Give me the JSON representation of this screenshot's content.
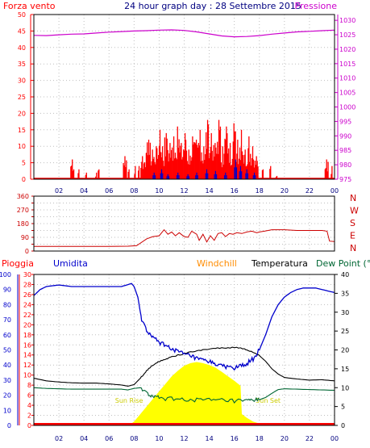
{
  "colors": {
    "wind": "#ff0000",
    "wind_secondary": "#0000cc",
    "pressure": "#cc00cc",
    "direction": "#cc0000",
    "rain": "#ff0000",
    "humidity": "#0000cc",
    "windchill": "#ff8c00",
    "temperature": "#000000",
    "dewpoint": "#006633",
    "sun": "#ffff00",
    "sun_label": "#cccc00",
    "grid": "#bfbfbf",
    "frame": "#000000"
  },
  "chart_data": [
    {
      "panel": "wind-pressure",
      "type": "bar",
      "title": "24 hour graph day : 28 Settembre 2015",
      "left_label": "Forza vento",
      "right_label": "Pressione",
      "x_ticks": [
        "02",
        "04",
        "06",
        "08",
        "10",
        "12",
        "14",
        "16",
        "18",
        "20",
        "22",
        "00"
      ],
      "y_left_ticks": [
        0,
        5,
        10,
        15,
        20,
        25,
        30,
        35,
        40,
        45,
        50
      ],
      "y_left_range": [
        0,
        50
      ],
      "y_right_ticks": [
        975,
        980,
        985,
        990,
        995,
        1000,
        1005,
        1010,
        1015,
        1020,
        1025,
        1030
      ],
      "y_right_range": [
        975,
        1032
      ],
      "x_range": [
        0,
        24
      ],
      "gust_peaks": [
        [
          3.1,
          6
        ],
        [
          3.6,
          3
        ],
        [
          4.2,
          2
        ],
        [
          5.0,
          2
        ],
        [
          5.2,
          3
        ],
        [
          7.3,
          7
        ],
        [
          7.6,
          3
        ],
        [
          8.1,
          4
        ],
        [
          8.4,
          4
        ],
        [
          8.7,
          7
        ],
        [
          9.0,
          8
        ],
        [
          9.2,
          12
        ],
        [
          9.5,
          9
        ],
        [
          9.8,
          10
        ],
        [
          10.1,
          15
        ],
        [
          10.3,
          10
        ],
        [
          10.6,
          14
        ],
        [
          10.9,
          11
        ],
        [
          11.2,
          13
        ],
        [
          11.5,
          16
        ],
        [
          11.8,
          11
        ],
        [
          12.1,
          14
        ],
        [
          12.4,
          9
        ],
        [
          12.7,
          13
        ],
        [
          13.0,
          12
        ],
        [
          13.3,
          15
        ],
        [
          13.6,
          10
        ],
        [
          13.9,
          18
        ],
        [
          14.2,
          14
        ],
        [
          14.5,
          11
        ],
        [
          14.8,
          18
        ],
        [
          15.1,
          10
        ],
        [
          15.4,
          16
        ],
        [
          15.7,
          11
        ],
        [
          16.0,
          17
        ],
        [
          16.3,
          12
        ],
        [
          16.6,
          15
        ],
        [
          16.9,
          9
        ],
        [
          17.2,
          13
        ],
        [
          17.5,
          10
        ],
        [
          17.8,
          7
        ],
        [
          18.3,
          3
        ],
        [
          18.9,
          4
        ],
        [
          19.4,
          1
        ],
        [
          23.4,
          6
        ],
        [
          23.8,
          4
        ]
      ],
      "mean_wind_peaks": [
        [
          9.6,
          2
        ],
        [
          10.2,
          3
        ],
        [
          10.7,
          1.5
        ],
        [
          11.5,
          2
        ],
        [
          12.3,
          1.5
        ],
        [
          13.0,
          2
        ],
        [
          13.8,
          3
        ],
        [
          14.5,
          2.5
        ],
        [
          15.3,
          2
        ],
        [
          16.1,
          6
        ],
        [
          16.5,
          4
        ],
        [
          17.0,
          3
        ],
        [
          17.6,
          2
        ]
      ],
      "pressure": [
        [
          0,
          1024.8
        ],
        [
          1,
          1024.7
        ],
        [
          2,
          1025.0
        ],
        [
          3,
          1025.2
        ],
        [
          4,
          1025.3
        ],
        [
          5,
          1025.6
        ],
        [
          6,
          1025.9
        ],
        [
          7,
          1026.1
        ],
        [
          8,
          1026.3
        ],
        [
          9,
          1026.4
        ],
        [
          10,
          1026.6
        ],
        [
          11,
          1026.7
        ],
        [
          12,
          1026.5
        ],
        [
          13,
          1026.0
        ],
        [
          14,
          1025.3
        ],
        [
          15,
          1024.6
        ],
        [
          16,
          1024.3
        ],
        [
          17,
          1024.4
        ],
        [
          18,
          1024.7
        ],
        [
          19,
          1025.2
        ],
        [
          20,
          1025.6
        ],
        [
          21,
          1026.0
        ],
        [
          22,
          1026.2
        ],
        [
          23,
          1026.4
        ],
        [
          24,
          1026.6
        ]
      ]
    },
    {
      "panel": "wind-direction",
      "type": "line",
      "y_ticks": [
        0,
        45,
        90,
        135,
        180,
        225,
        270,
        315,
        360
      ],
      "y_tick_labels": [
        "0",
        "",
        "90",
        "",
        "180",
        "",
        "270",
        "",
        "360"
      ],
      "compass_labels": [
        "N",
        "W",
        "S",
        "E",
        "N"
      ],
      "y_range": [
        0,
        360
      ],
      "x_range": [
        0,
        24
      ],
      "direction": [
        [
          0,
          30
        ],
        [
          6,
          30
        ],
        [
          7.5,
          32
        ],
        [
          8.2,
          35
        ],
        [
          9.0,
          80
        ],
        [
          9.5,
          95
        ],
        [
          10,
          100
        ],
        [
          10.4,
          140
        ],
        [
          10.7,
          110
        ],
        [
          11,
          125
        ],
        [
          11.3,
          100
        ],
        [
          11.6,
          120
        ],
        [
          12,
          95
        ],
        [
          12.3,
          90
        ],
        [
          12.6,
          130
        ],
        [
          13,
          110
        ],
        [
          13.2,
          70
        ],
        [
          13.5,
          110
        ],
        [
          13.8,
          60
        ],
        [
          14.1,
          100
        ],
        [
          14.4,
          70
        ],
        [
          14.7,
          115
        ],
        [
          15,
          120
        ],
        [
          15.3,
          95
        ],
        [
          15.6,
          115
        ],
        [
          15.9,
          110
        ],
        [
          16.2,
          120
        ],
        [
          16.6,
          115
        ],
        [
          17,
          125
        ],
        [
          17.4,
          130
        ],
        [
          17.8,
          120
        ],
        [
          18,
          125
        ],
        [
          18.4,
          130
        ],
        [
          19,
          140
        ],
        [
          20,
          140
        ],
        [
          21,
          135
        ],
        [
          22,
          135
        ],
        [
          23,
          135
        ],
        [
          23.4,
          130
        ],
        [
          23.6,
          65
        ],
        [
          24,
          62
        ]
      ]
    },
    {
      "panel": "temperature-humidity-rain",
      "type": "line",
      "labels": {
        "rain": "Pioggia",
        "humidity": "Umidita",
        "windchill": "Windchill",
        "temperature": "Temperatura",
        "dewpoint": "Dew Point (°C"
      },
      "sun_labels": {
        "rise": "Sun Rise",
        "set": "Sun Set"
      },
      "x_ticks": [
        "02",
        "04",
        "06",
        "08",
        "10",
        "12",
        "14",
        "16",
        "18",
        "20",
        "22",
        "00"
      ],
      "y_humidity_ticks": [
        0,
        10,
        20,
        30,
        40,
        50,
        60,
        70,
        80,
        90,
        100
      ],
      "y_rain_ticks": [
        0,
        2,
        4,
        6,
        8,
        10,
        12,
        14,
        16,
        18,
        20,
        22,
        24,
        26,
        28,
        30
      ],
      "y_temp_ticks": [
        0,
        5,
        10,
        15,
        20,
        25,
        30,
        35,
        40
      ],
      "y_humidity_range": [
        0,
        100
      ],
      "y_temp_range": [
        0,
        40
      ],
      "x_range": [
        0,
        24
      ],
      "humidity": [
        [
          0,
          86
        ],
        [
          0.5,
          90
        ],
        [
          1,
          92
        ],
        [
          2,
          93
        ],
        [
          3,
          92
        ],
        [
          4,
          92
        ],
        [
          5,
          92
        ],
        [
          6,
          92
        ],
        [
          7,
          92
        ],
        [
          7.8,
          94
        ],
        [
          8.0,
          92
        ],
        [
          8.3,
          85
        ],
        [
          8.6,
          70
        ],
        [
          9,
          63
        ],
        [
          9.5,
          58
        ],
        [
          10,
          55
        ],
        [
          10.5,
          53
        ],
        [
          11,
          51
        ],
        [
          11.5,
          49
        ],
        [
          12,
          47
        ],
        [
          12.5,
          46
        ],
        [
          13,
          44
        ],
        [
          13.5,
          43
        ],
        [
          14,
          42
        ],
        [
          14.5,
          41
        ],
        [
          15,
          39
        ],
        [
          15.5,
          39
        ],
        [
          16,
          38
        ],
        [
          16.5,
          39
        ],
        [
          17,
          41
        ],
        [
          17.5,
          44
        ],
        [
          18,
          50
        ],
        [
          18.5,
          60
        ],
        [
          19,
          72
        ],
        [
          19.5,
          80
        ],
        [
          20,
          85
        ],
        [
          20.5,
          88
        ],
        [
          21,
          90
        ],
        [
          21.5,
          91
        ],
        [
          22,
          91
        ],
        [
          22.5,
          91
        ],
        [
          23,
          90
        ],
        [
          23.5,
          89
        ],
        [
          24,
          88
        ]
      ],
      "temperature": [
        [
          0,
          12.5
        ],
        [
          1,
          11.8
        ],
        [
          2,
          11.5
        ],
        [
          3,
          11.3
        ],
        [
          4,
          11.2
        ],
        [
          5,
          11.2
        ],
        [
          6,
          11.0
        ],
        [
          7,
          10.7
        ],
        [
          7.5,
          10.4
        ],
        [
          8,
          10.8
        ],
        [
          8.5,
          12.5
        ],
        [
          9,
          14.5
        ],
        [
          9.5,
          16.0
        ],
        [
          10,
          17.0
        ],
        [
          10.5,
          17.6
        ],
        [
          11,
          18.2
        ],
        [
          12,
          19.0
        ],
        [
          13,
          19.8
        ],
        [
          14,
          20.3
        ],
        [
          15,
          20.5
        ],
        [
          16,
          20.6
        ],
        [
          16.5,
          20.5
        ],
        [
          17,
          20.0
        ],
        [
          17.5,
          19.3
        ],
        [
          18,
          18.5
        ],
        [
          18.5,
          17.0
        ],
        [
          19,
          15.0
        ],
        [
          19.5,
          13.6
        ],
        [
          20,
          12.7
        ],
        [
          21,
          12.3
        ],
        [
          22,
          12.0
        ],
        [
          23,
          12.1
        ],
        [
          24,
          11.8
        ]
      ],
      "dewpoint": [
        [
          0,
          10.0
        ],
        [
          1,
          9.8
        ],
        [
          2,
          9.7
        ],
        [
          3,
          9.6
        ],
        [
          4,
          9.6
        ],
        [
          5,
          9.6
        ],
        [
          6,
          9.6
        ],
        [
          7,
          9.6
        ],
        [
          7.5,
          9.4
        ],
        [
          8,
          9.8
        ],
        [
          8.5,
          10.0
        ],
        [
          9,
          8.5
        ],
        [
          9.5,
          7.6
        ],
        [
          10,
          7.2
        ],
        [
          11,
          7.0
        ],
        [
          12,
          6.9
        ],
        [
          13,
          6.8
        ],
        [
          14,
          6.6
        ],
        [
          15,
          6.6
        ],
        [
          16,
          6.4
        ],
        [
          17,
          6.4
        ],
        [
          17.5,
          6.6
        ],
        [
          18,
          6.8
        ],
        [
          18.5,
          7.4
        ],
        [
          19,
          8.5
        ],
        [
          19.5,
          9.5
        ],
        [
          20,
          9.7
        ],
        [
          21,
          9.6
        ],
        [
          22,
          9.5
        ],
        [
          23,
          9.4
        ],
        [
          24,
          9.3
        ]
      ],
      "sun_radiation": [
        [
          7.6,
          0
        ],
        [
          8.0,
          1
        ],
        [
          8.5,
          3
        ],
        [
          9,
          5
        ],
        [
          9.5,
          7
        ],
        [
          10,
          9
        ],
        [
          10.5,
          11
        ],
        [
          11,
          13
        ],
        [
          11.5,
          14.5
        ],
        [
          12,
          15.8
        ],
        [
          12.5,
          16.5
        ],
        [
          13,
          16.8
        ],
        [
          13.5,
          16.5
        ],
        [
          14,
          16.0
        ],
        [
          14.5,
          15.3
        ],
        [
          15,
          14.2
        ],
        [
          15.5,
          13.0
        ],
        [
          16,
          11.8
        ],
        [
          16.5,
          10.5
        ],
        [
          16.6,
          3
        ],
        [
          17,
          2
        ],
        [
          17.5,
          1
        ],
        [
          18.2,
          0.3
        ],
        [
          18.5,
          0
        ]
      ],
      "rain": []
    }
  ]
}
